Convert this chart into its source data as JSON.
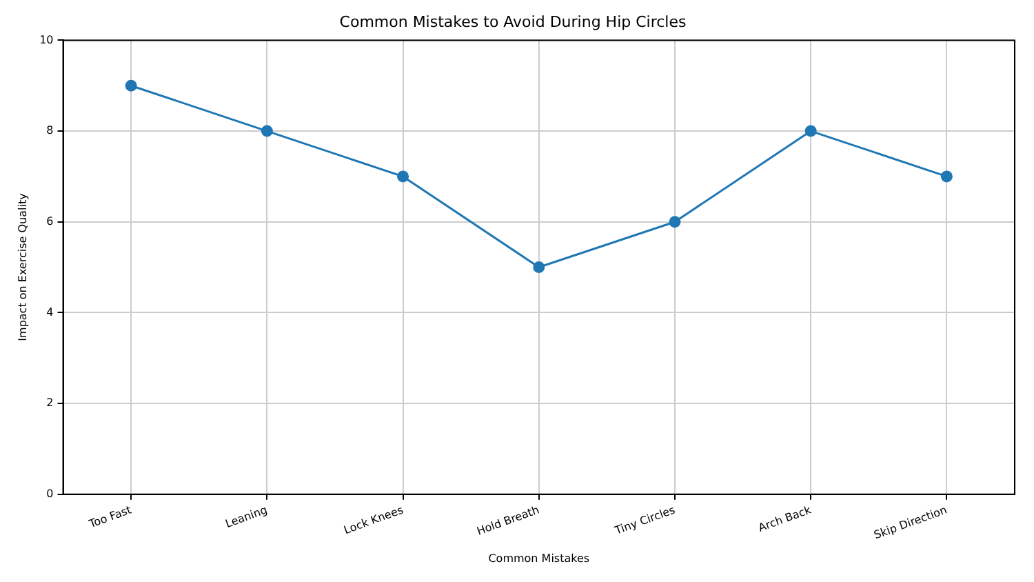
{
  "chart_data": {
    "type": "line",
    "title": "Common Mistakes to Avoid During Hip Circles",
    "xlabel": "Common Mistakes",
    "ylabel": "Impact on Exercise Quality",
    "categories": [
      "Too Fast",
      "Leaning",
      "Lock Knees",
      "Hold Breath",
      "Tiny Circles",
      "Arch Back",
      "Skip Direction"
    ],
    "series": [
      {
        "color": "#1f77b4",
        "values": [
          9,
          8,
          7,
          5,
          6,
          8,
          7
        ]
      }
    ],
    "ylim": [
      0,
      10
    ],
    "yticks": [
      0,
      2,
      4,
      6,
      8,
      10
    ],
    "grid": true,
    "marker": "circle",
    "line_style": "solid",
    "legend": false
  }
}
